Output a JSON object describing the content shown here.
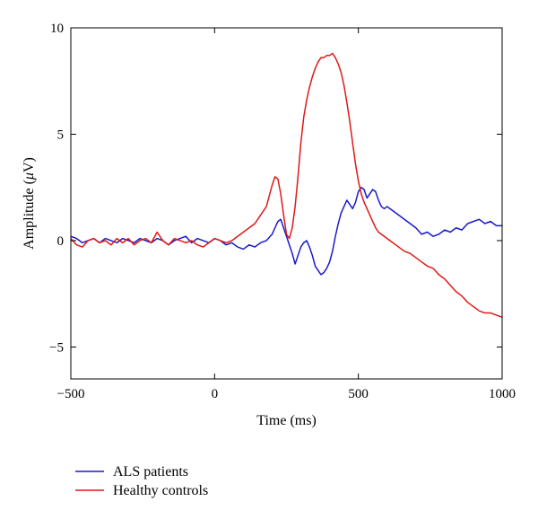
{
  "chart_data": {
    "type": "line",
    "xlabel": "Time (ms)",
    "ylabel_parts": [
      "Amplitude (",
      "μ",
      "V)"
    ],
    "xlim": [
      -500,
      1000
    ],
    "ylim": [
      -6.5,
      10
    ],
    "xticks": [
      -500,
      0,
      500,
      1000
    ],
    "xtick_labels": [
      "−500",
      "0",
      "500",
      "1000"
    ],
    "yticks": [
      -5,
      0,
      5,
      10
    ],
    "ytick_labels": [
      "−5",
      "0",
      "5",
      "10"
    ],
    "grid": false,
    "legend_position": "below-left",
    "series": [
      {
        "name": "ALS patients",
        "color": "#1a1acc",
        "x": [
          -500,
          -480,
          -460,
          -440,
          -420,
          -400,
          -380,
          -360,
          -340,
          -320,
          -300,
          -280,
          -260,
          -240,
          -220,
          -200,
          -180,
          -160,
          -140,
          -120,
          -100,
          -80,
          -60,
          -40,
          -20,
          0,
          20,
          40,
          60,
          80,
          100,
          120,
          140,
          160,
          180,
          200,
          210,
          220,
          230,
          240,
          250,
          260,
          270,
          280,
          290,
          300,
          310,
          320,
          330,
          340,
          350,
          360,
          370,
          380,
          390,
          400,
          410,
          420,
          430,
          440,
          450,
          460,
          470,
          480,
          490,
          500,
          510,
          520,
          530,
          540,
          550,
          560,
          570,
          580,
          590,
          600,
          620,
          640,
          660,
          680,
          700,
          720,
          740,
          760,
          780,
          800,
          820,
          840,
          860,
          880,
          900,
          920,
          940,
          960,
          980,
          1000
        ],
        "values": [
          0.2,
          0.1,
          -0.1,
          0.0,
          0.1,
          -0.1,
          0.1,
          0.0,
          -0.1,
          0.1,
          0.0,
          -0.1,
          0.1,
          0.0,
          -0.1,
          0.1,
          0.0,
          -0.2,
          0.0,
          0.1,
          0.2,
          -0.1,
          0.1,
          0.0,
          -0.1,
          0.1,
          0.0,
          -0.2,
          -0.1,
          -0.3,
          -0.4,
          -0.2,
          -0.3,
          -0.1,
          0.0,
          0.3,
          0.6,
          0.9,
          1.0,
          0.6,
          0.2,
          -0.2,
          -0.6,
          -1.1,
          -0.7,
          -0.3,
          -0.1,
          0.0,
          -0.3,
          -0.7,
          -1.2,
          -1.4,
          -1.6,
          -1.5,
          -1.3,
          -1.0,
          -0.5,
          0.2,
          0.8,
          1.3,
          1.6,
          1.9,
          1.7,
          1.5,
          1.8,
          2.3,
          2.5,
          2.4,
          2.0,
          2.2,
          2.4,
          2.3,
          1.9,
          1.6,
          1.5,
          1.6,
          1.4,
          1.2,
          1.0,
          0.8,
          0.6,
          0.3,
          0.4,
          0.2,
          0.3,
          0.5,
          0.4,
          0.6,
          0.5,
          0.8,
          0.9,
          1.0,
          0.8,
          0.9,
          0.7,
          0.7
        ]
      },
      {
        "name": "Healthy controls",
        "color": "#e01818",
        "x": [
          -500,
          -480,
          -460,
          -440,
          -420,
          -400,
          -380,
          -360,
          -340,
          -320,
          -300,
          -280,
          -260,
          -240,
          -220,
          -200,
          -180,
          -160,
          -140,
          -120,
          -100,
          -80,
          -60,
          -40,
          -20,
          0,
          20,
          40,
          60,
          80,
          100,
          120,
          140,
          160,
          180,
          200,
          210,
          220,
          230,
          240,
          250,
          260,
          270,
          280,
          290,
          300,
          310,
          320,
          330,
          340,
          350,
          360,
          370,
          380,
          390,
          400,
          410,
          420,
          430,
          440,
          450,
          460,
          470,
          480,
          490,
          500,
          510,
          520,
          530,
          540,
          550,
          560,
          570,
          580,
          590,
          600,
          620,
          640,
          660,
          680,
          700,
          720,
          740,
          760,
          780,
          800,
          820,
          840,
          860,
          880,
          900,
          920,
          940,
          960,
          980,
          1000
        ],
        "values": [
          0.1,
          -0.2,
          -0.3,
          0.0,
          0.1,
          -0.1,
          0.0,
          -0.2,
          0.1,
          -0.1,
          0.1,
          -0.2,
          0.0,
          0.1,
          -0.1,
          0.4,
          0.0,
          -0.2,
          0.1,
          0.0,
          -0.1,
          0.0,
          -0.2,
          -0.3,
          -0.1,
          0.1,
          0.0,
          -0.1,
          0.0,
          0.2,
          0.4,
          0.6,
          0.8,
          1.2,
          1.6,
          2.6,
          3.0,
          2.9,
          2.2,
          1.2,
          0.3,
          0.1,
          0.6,
          1.6,
          3.0,
          4.6,
          5.8,
          6.6,
          7.2,
          7.7,
          8.1,
          8.4,
          8.6,
          8.6,
          8.7,
          8.7,
          8.8,
          8.6,
          8.3,
          7.9,
          7.3,
          6.5,
          5.6,
          4.6,
          3.6,
          2.8,
          2.2,
          1.8,
          1.5,
          1.2,
          0.9,
          0.6,
          0.4,
          0.3,
          0.2,
          0.1,
          -0.1,
          -0.3,
          -0.5,
          -0.6,
          -0.8,
          -1.0,
          -1.2,
          -1.3,
          -1.6,
          -1.8,
          -2.1,
          -2.4,
          -2.6,
          -2.9,
          -3.1,
          -3.3,
          -3.4,
          -3.4,
          -3.5,
          -3.6
        ]
      }
    ]
  }
}
